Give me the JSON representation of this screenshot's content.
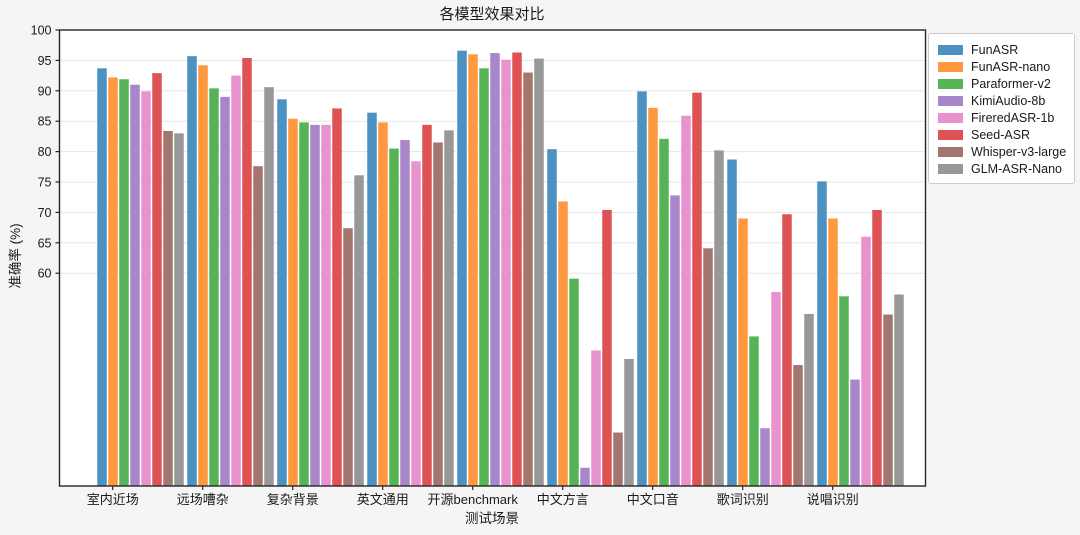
{
  "figure": {
    "background_color": "#f5f5f6",
    "plot_background_color": "#ffffff",
    "gridline_color": "#e6e6e6",
    "spine_color": "#262626",
    "text_color": "#1a1a1a",
    "legend_border_color": "#cccccc"
  },
  "chart_data": {
    "type": "bar",
    "title": "各模型效果对比",
    "xlabel": "测试场景",
    "ylabel": "准确率 (%)",
    "ylim": [
      25,
      100
    ],
    "yticks": [
      60,
      65,
      70,
      75,
      80,
      85,
      90,
      95,
      100
    ],
    "grid": "horizontal",
    "legend_position": "outside-right",
    "categories": [
      "室内近场",
      "远场嘈杂",
      "复杂背景",
      "英文通用",
      "开源benchmark",
      "中文方言",
      "中文口音",
      "歌词识别",
      "说唱识别"
    ],
    "series": [
      {
        "name": "FunASR",
        "color": "#4B92C3",
        "values": [
          93.7,
          95.7,
          88.6,
          86.4,
          96.6,
          80.4,
          89.9,
          78.7,
          75.1
        ]
      },
      {
        "name": "FunASR-nano",
        "color": "#FF983E",
        "values": [
          92.2,
          94.2,
          85.4,
          84.8,
          96.0,
          71.8,
          87.2,
          69.0,
          69.0
        ]
      },
      {
        "name": "Paraformer-v2",
        "color": "#56B356",
        "values": [
          91.9,
          90.4,
          84.8,
          80.5,
          93.7,
          59.1,
          82.1,
          49.6,
          56.2
        ]
      },
      {
        "name": "KimiAudio-8b",
        "color": "#A985CA",
        "values": [
          91.0,
          89.0,
          84.4,
          81.9,
          96.2,
          28.0,
          72.8,
          34.5,
          42.5
        ]
      },
      {
        "name": "FireredASR-1b",
        "color": "#E892CE",
        "values": [
          89.9,
          92.5,
          84.4,
          78.4,
          95.1,
          47.3,
          85.9,
          56.9,
          66.0
        ]
      },
      {
        "name": "Seed-ASR",
        "color": "#DE5253",
        "values": [
          92.9,
          95.4,
          87.1,
          84.4,
          96.3,
          70.4,
          89.7,
          69.7,
          70.4
        ]
      },
      {
        "name": "Whisper-v3-large",
        "color": "#A3776F",
        "values": [
          83.4,
          77.6,
          67.4,
          81.5,
          93.0,
          33.8,
          64.1,
          44.9,
          53.2
        ]
      },
      {
        "name": "GLM-ASR-Nano",
        "color": "#989898",
        "values": [
          83.0,
          90.6,
          76.1,
          83.5,
          95.3,
          45.9,
          80.2,
          53.3,
          56.5
        ]
      }
    ]
  }
}
